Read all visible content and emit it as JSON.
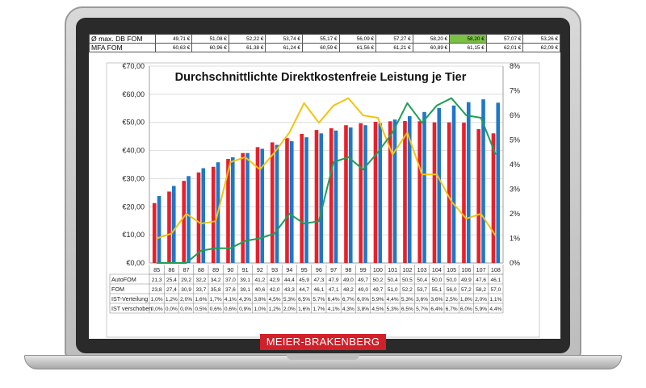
{
  "brand": {
    "label": "MEIER-BRAKENBERG"
  },
  "top_table": {
    "rows": [
      {
        "label": "Ø max. DB FOM",
        "values": [
          "49,71 €",
          "51,08 €",
          "52,22 €",
          "53,74 €",
          "55,17 €",
          "56,09 €",
          "57,27 €",
          "58,20 €",
          "58,20 €",
          "57,07 €",
          "53,26 €"
        ]
      },
      {
        "label": "MFA FOM",
        "values": [
          "60,63 €",
          "60,96 €",
          "61,38 €",
          "61,24 €",
          "60,59 €",
          "61,56 €",
          "61,21 €",
          "60,89 €",
          "61,15 €",
          "62,01 €",
          "62,09 €"
        ]
      }
    ],
    "highlight_color": "#7ac143"
  },
  "chart_data": {
    "type": "bar",
    "title": "Durchschnittlichte Direktkostenfreie Leistung je Tier",
    "categories": [
      "85",
      "86",
      "87",
      "88",
      "89",
      "90",
      "91",
      "92",
      "93",
      "94",
      "95",
      "96",
      "97",
      "98",
      "99",
      "100",
      "101",
      "102",
      "103",
      "104",
      "105",
      "106",
      "107",
      "108"
    ],
    "y_left": {
      "ylim": [
        0,
        70
      ],
      "ticks": [
        "€0,00",
        "€10,00",
        "€20,00",
        "€30,00",
        "€40,00",
        "€50,00",
        "€60,00",
        "€70,00"
      ]
    },
    "y_right": {
      "ylim": [
        0,
        8
      ],
      "ticks": [
        "0%",
        "1%",
        "2%",
        "3%",
        "4%",
        "5%",
        "6%",
        "7%",
        "8%"
      ]
    },
    "grid": true,
    "series": [
      {
        "name": "AutoFOM",
        "kind": "bar",
        "axis": "left",
        "color": "#e8202a",
        "values": [
          21.3,
          25.4,
          29.2,
          32.2,
          34.2,
          37.0,
          39.1,
          41.2,
          42.9,
          44.4,
          45.9,
          47.3,
          47.9,
          49.0,
          49.7,
          50.2,
          50.4,
          50.5,
          50.4,
          50.0,
          50.0,
          49.9,
          47.6,
          46.1
        ],
        "labels": [
          "21,3",
          "25,4",
          "29,2",
          "32,2",
          "34,2",
          "37,0",
          "39,1",
          "41,2",
          "42,9",
          "44,4",
          "45,9",
          "47,3",
          "47,9",
          "49,0",
          "49,7",
          "50,2",
          "50,4",
          "50,5",
          "50,4",
          "50,0",
          "50,0",
          "49,9",
          "47,6",
          "46,1"
        ]
      },
      {
        "name": "FOM",
        "kind": "bar",
        "axis": "left",
        "color": "#1f77c9",
        "values": [
          23.8,
          27.4,
          30.9,
          33.7,
          35.8,
          37.6,
          39.1,
          40.6,
          42.0,
          43.3,
          44.7,
          46.1,
          47.1,
          48.2,
          49.0,
          49.7,
          51.0,
          52.2,
          53.7,
          55.1,
          56.0,
          57.2,
          58.2,
          57.0
        ],
        "labels": [
          "23,8",
          "27,4",
          "30,9",
          "33,7",
          "35,8",
          "37,6",
          "39,1",
          "40,6",
          "42,0",
          "43,3",
          "44,7",
          "46,1",
          "47,1",
          "48,2",
          "49,0",
          "49,7",
          "51,0",
          "52,2",
          "53,7",
          "55,1",
          "56,0",
          "57,2",
          "58,2",
          "57,0"
        ]
      },
      {
        "name": "IST-Verteilung",
        "kind": "line",
        "axis": "right",
        "color": "#f2c40f",
        "values": [
          1.0,
          1.2,
          2.0,
          1.6,
          1.7,
          4.1,
          4.3,
          3.8,
          4.5,
          5.3,
          6.5,
          5.7,
          6.4,
          6.7,
          6.0,
          5.9,
          4.4,
          5.3,
          3.6,
          3.6,
          2.5,
          1.8,
          2.0,
          1.1
        ],
        "labels": [
          "1,0%",
          "1,2%",
          "2,0%",
          "1,6%",
          "1,7%",
          "4,1%",
          "4,3%",
          "3,8%",
          "4,5%",
          "5,3%",
          "6,5%",
          "5,7%",
          "6,4%",
          "6,7%",
          "6,0%",
          "5,9%",
          "4,4%",
          "5,3%",
          "3,6%",
          "3,6%",
          "2,5%",
          "1,8%",
          "2,0%",
          "1,1%"
        ]
      },
      {
        "name": "IST verschoben",
        "kind": "line",
        "axis": "right",
        "color": "#1f9e56",
        "values": [
          0.0,
          0.0,
          0.0,
          0.5,
          0.6,
          0.6,
          0.9,
          1.0,
          1.2,
          2.0,
          1.6,
          1.7,
          4.1,
          4.3,
          3.8,
          4.5,
          5.3,
          6.5,
          5.7,
          6.4,
          6.7,
          6.0,
          5.9,
          4.4
        ],
        "labels": [
          "0,0%",
          "0,0%",
          "0,0%",
          "0,5%",
          "0,6%",
          "0,6%",
          "0,9%",
          "1,0%",
          "1,2%",
          "2,0%",
          "1,6%",
          "1,7%",
          "4,1%",
          "4,3%",
          "3,8%",
          "4,5%",
          "5,3%",
          "6,5%",
          "5,7%",
          "6,4%",
          "6,7%",
          "6,0%",
          "5,9%",
          "4,4%"
        ]
      }
    ]
  }
}
